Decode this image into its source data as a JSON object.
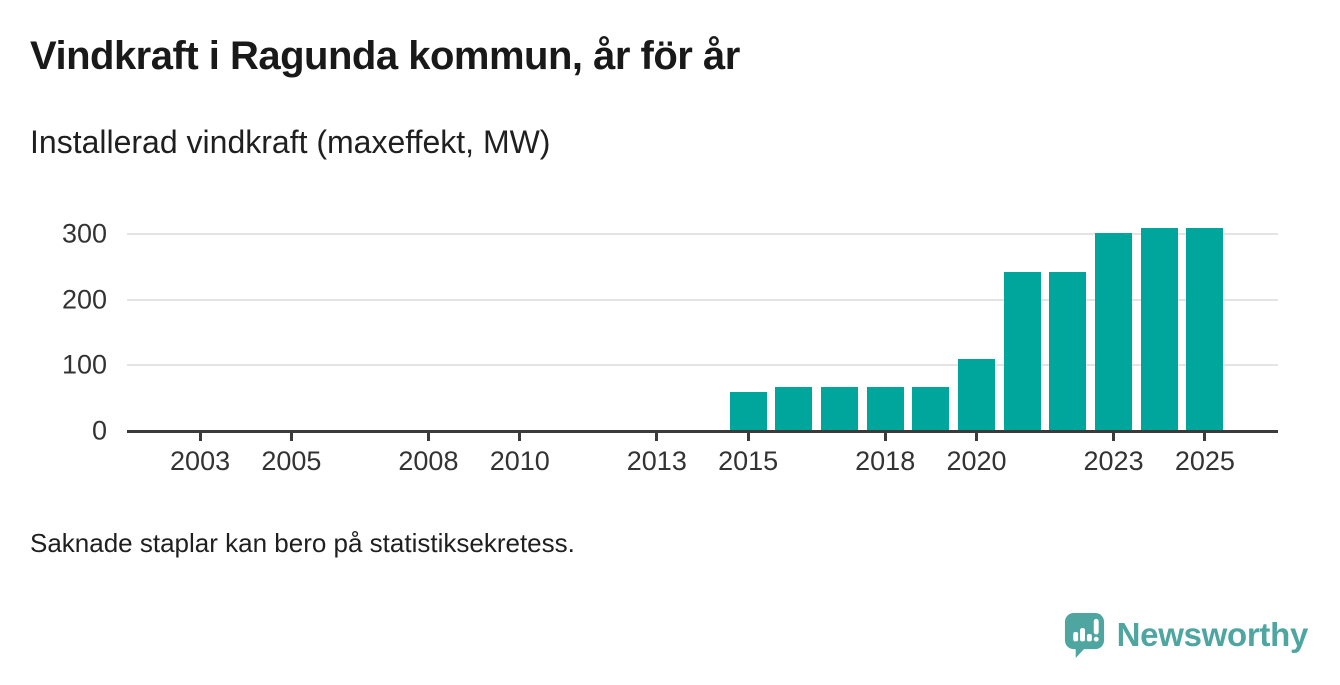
{
  "header": {
    "title": "Vindkraft i Ragunda kommun, år för år",
    "subtitle": "Installerad vindkraft (maxeffekt, MW)"
  },
  "chart_data": {
    "type": "bar",
    "title": "Vindkraft i Ragunda kommun, år för år",
    "subtitle": "Installerad vindkraft (maxeffekt, MW)",
    "unit": "MW",
    "x": [
      2015,
      2016,
      2017,
      2018,
      2019,
      2020,
      2021,
      2022,
      2023,
      2024,
      2025
    ],
    "values": [
      60,
      67,
      67,
      67,
      67,
      110,
      243,
      243,
      302,
      310,
      310
    ],
    "missing_years": [
      2002,
      2003,
      2004,
      2005,
      2006,
      2007,
      2008,
      2009,
      2010,
      2011,
      2012,
      2013,
      2014
    ],
    "xticks": [
      2003,
      2005,
      2008,
      2010,
      2013,
      2015,
      2018,
      2020,
      2023,
      2025
    ],
    "yticks": [
      0,
      100,
      200,
      300
    ],
    "ylim": [
      0,
      340
    ],
    "x_domain": [
      2001.4,
      2026.6
    ],
    "grid": "horizontal",
    "legend": "none",
    "bar_color": "#00a59b",
    "axis_color": "#3b3b3b",
    "grid_color": "#e4e4e4",
    "label_color": "#333333"
  },
  "footer": {
    "note": "Saknade staplar kan bero på statistiksekretess."
  },
  "branding": {
    "wordmark": "Newsworthy",
    "logo_icon": "speech-bubble-bar-chart-icon",
    "color": "#4fa6a1"
  }
}
